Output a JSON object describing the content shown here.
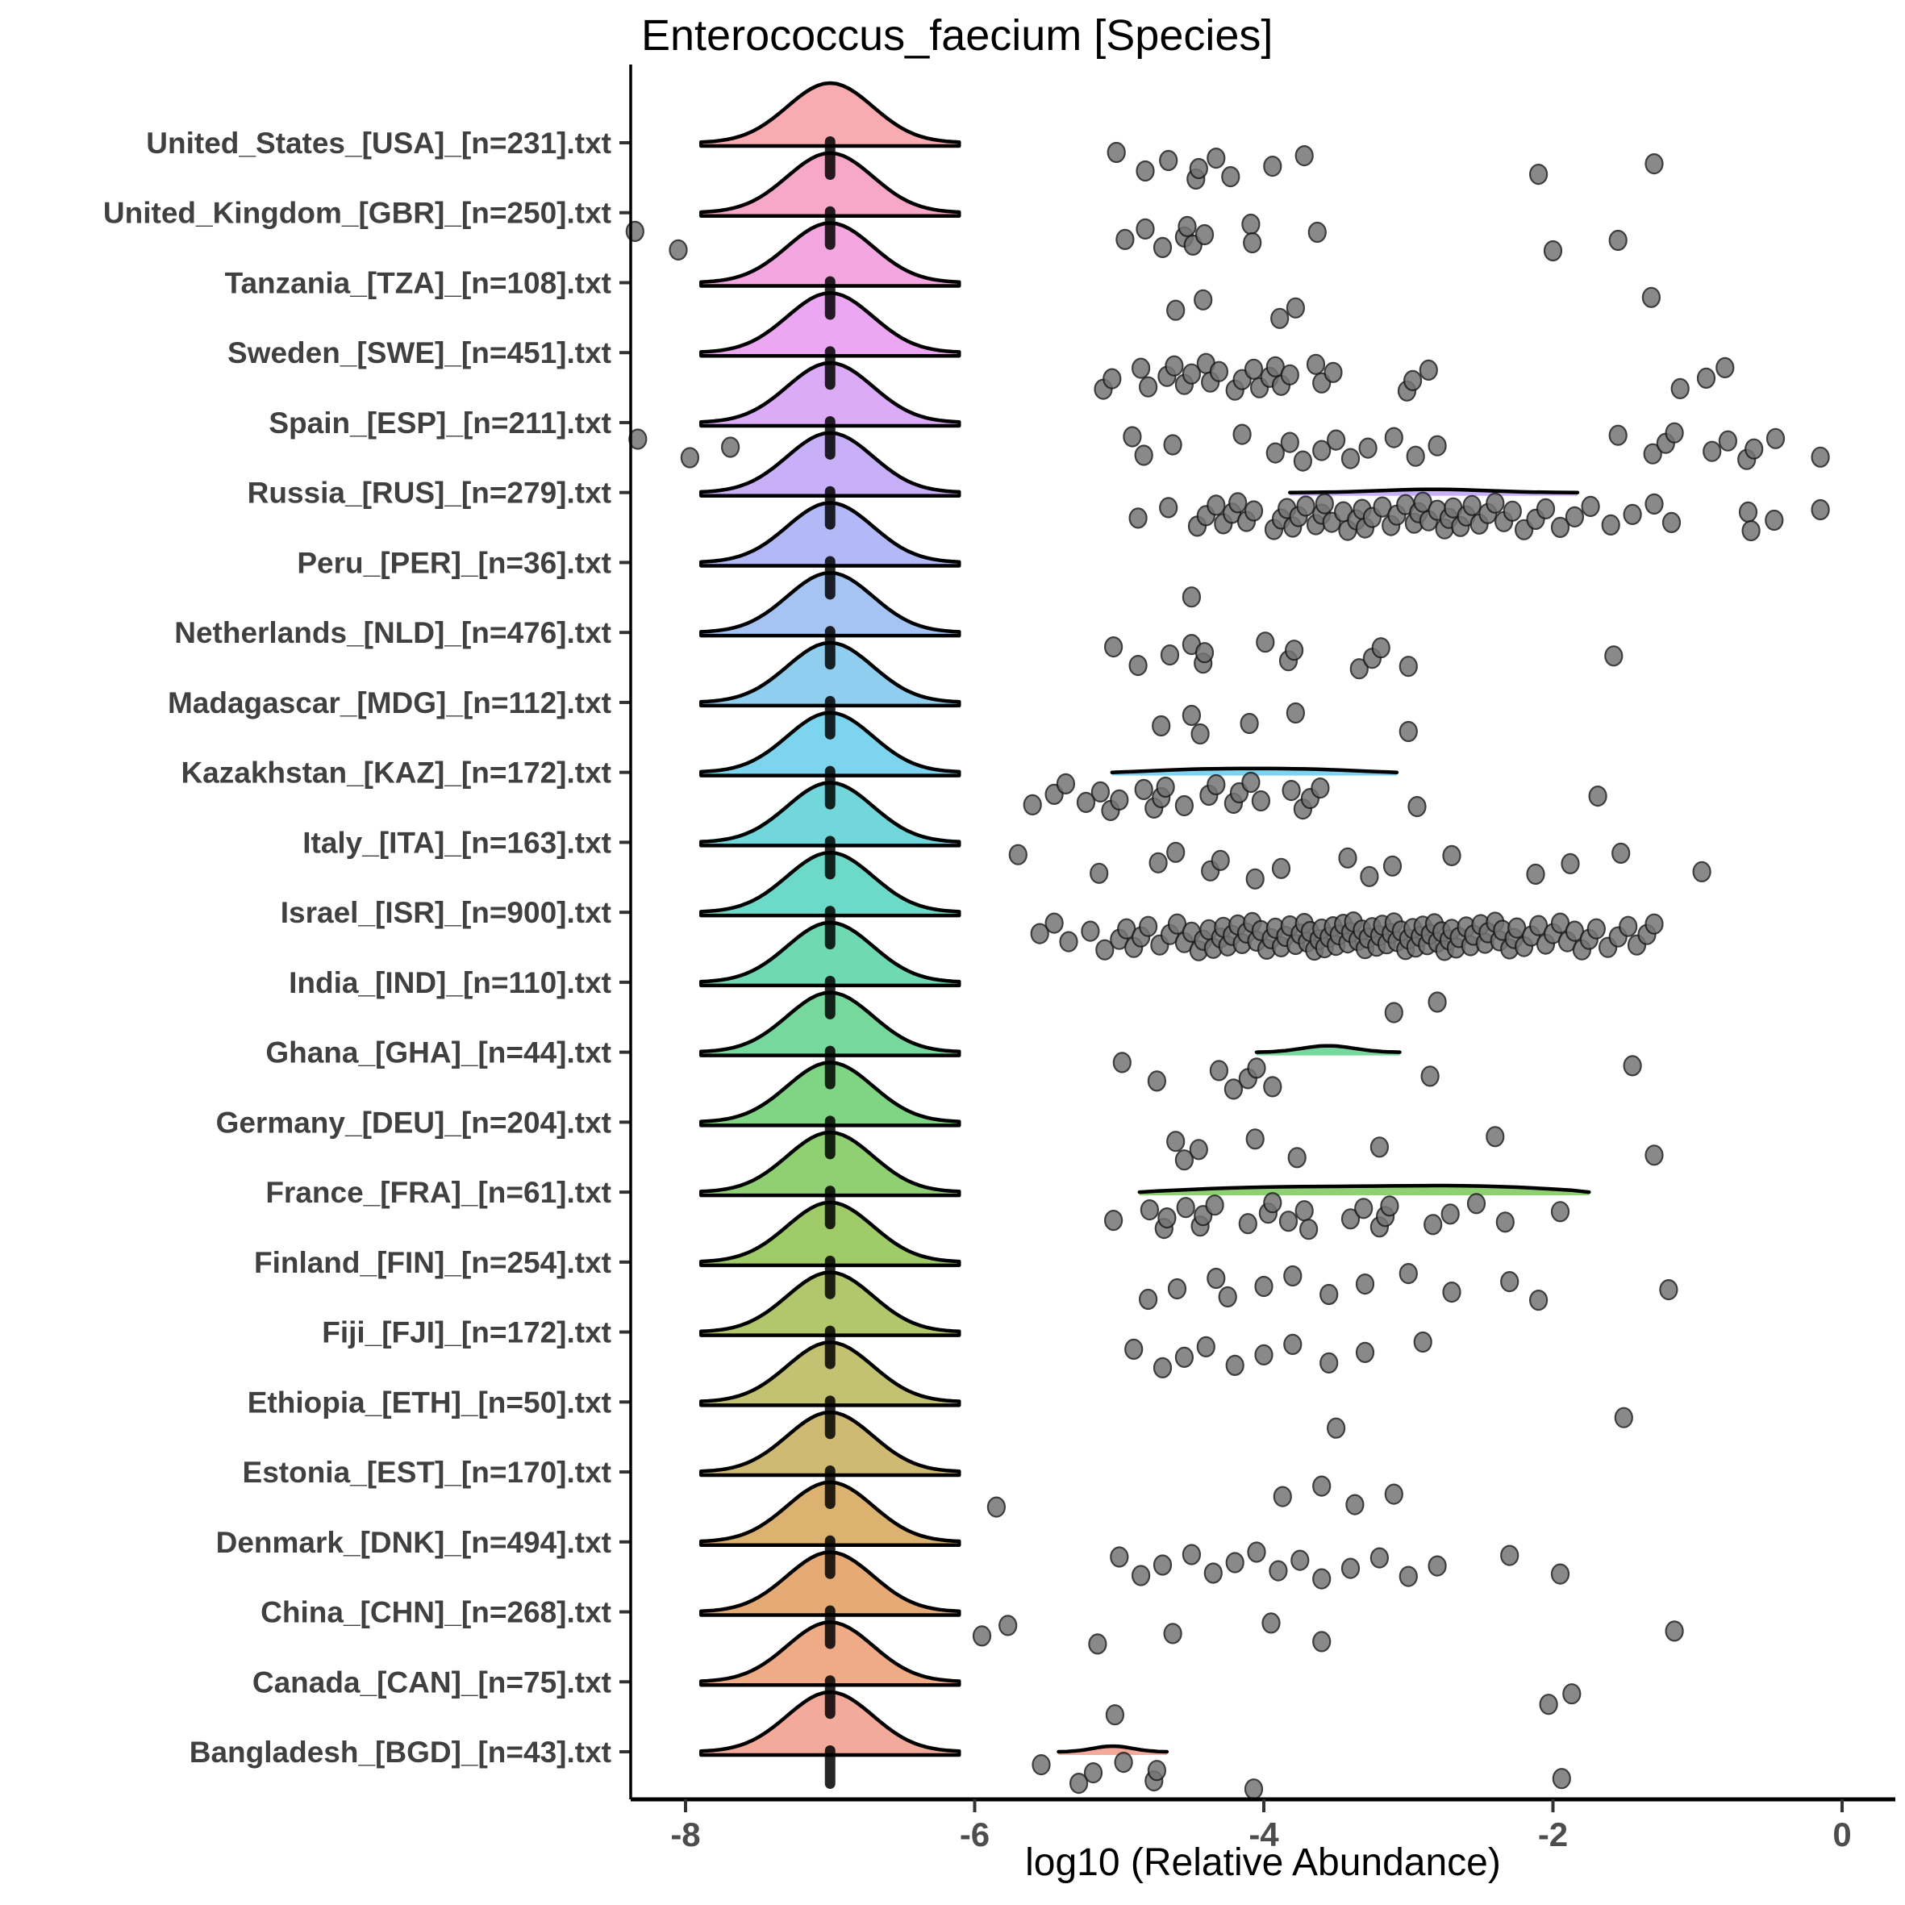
{
  "chart_data": {
    "type": "scatter",
    "variant": "ridgeline raincloud (density ridges at pseudo-zero + jittered sample points)",
    "title": "Enterococcus_faecium [Species]",
    "xlabel": "log10 (Relative Abundance)",
    "x_ticks": [
      -8,
      -6,
      -4,
      -2,
      0
    ],
    "xlim": [
      -8.4,
      0.37
    ],
    "zero_bar_x": -7,
    "grid": "off",
    "legend": "none",
    "colors": {
      "axis_text": "#4d4d4d",
      "label_text": "#404040",
      "point_fill": "#757575",
      "point_stroke": "#1c1c1c",
      "ridge_stroke": "#000000",
      "zero_bar": "#000000"
    },
    "rows": [
      {
        "label": "United_States_[USA]_[n=231].txt",
        "n": 231,
        "color": "#F8ABB1",
        "points": [
          -5.02,
          -4.82,
          -4.66,
          -4.47,
          -4.45,
          -4.33,
          -4.23,
          -3.94,
          -3.72,
          -2.1,
          -1.3
        ],
        "flat_ridge": null
      },
      {
        "label": "United_Kingdom_[GBR]_[n=250].txt",
        "n": 250,
        "color": "#F7A8C8",
        "points": [
          -8.35,
          -8.05,
          -4.96,
          -4.82,
          -4.7,
          -4.55,
          -4.53,
          -4.49,
          -4.41,
          -4.09,
          -4.08,
          -3.63,
          -2.0,
          -1.55
        ],
        "flat_ridge": null
      },
      {
        "label": "Tanzania_[TZA]_[n=108].txt",
        "n": 108,
        "color": "#F3A6DF",
        "points": [
          -4.61,
          -4.42,
          -3.89,
          -3.78,
          -1.32
        ],
        "flat_ridge": null
      },
      {
        "label": "Sweden_[SWE]_[n=451].txt",
        "n": 451,
        "color": "#ECA7F2",
        "points": [
          -5.11,
          -5.05,
          -4.85,
          -4.8,
          -4.67,
          -4.62,
          -4.55,
          -4.5,
          -4.4,
          -4.37,
          -4.31,
          -4.2,
          -4.15,
          -4.07,
          -4.03,
          -3.96,
          -3.92,
          -3.88,
          -3.82,
          -3.64,
          -3.6,
          -3.52,
          -3.01,
          -2.97,
          -2.86,
          -1.12,
          -0.94,
          -0.81
        ],
        "flat_ridge": null
      },
      {
        "label": "Spain_[ESP]_[n=211].txt",
        "n": 211,
        "color": "#DBABF7",
        "points": [
          -8.33,
          -7.97,
          -7.69,
          -4.91,
          -4.83,
          -4.63,
          -4.15,
          -3.92,
          -3.82,
          -3.73,
          -3.6,
          -3.5,
          -3.4,
          -3.28,
          -3.1,
          -2.95,
          -2.8,
          -1.55,
          -1.31,
          -1.22,
          -1.16,
          -0.9,
          -0.79,
          -0.66,
          -0.61,
          -0.46,
          -0.15
        ],
        "flat_ridge": null
      },
      {
        "label": "Russia_[RUS]_[n=279].txt",
        "n": 279,
        "color": "#C7B0F7",
        "points": [
          -4.87,
          -4.66,
          -4.46,
          -4.4,
          -4.33,
          -4.28,
          -4.22,
          -4.18,
          -4.12,
          -4.07,
          -3.93,
          -3.88,
          -3.84,
          -3.8,
          -3.76,
          -3.71,
          -3.64,
          -3.6,
          -3.58,
          -3.53,
          -3.45,
          -3.42,
          -3.36,
          -3.32,
          -3.3,
          -3.25,
          -3.18,
          -3.12,
          -3.08,
          -3.02,
          -2.96,
          -2.93,
          -2.9,
          -2.86,
          -2.8,
          -2.75,
          -2.72,
          -2.69,
          -2.64,
          -2.6,
          -2.56,
          -2.51,
          -2.45,
          -2.4,
          -2.34,
          -2.28,
          -2.2,
          -2.12,
          -2.05,
          -1.95,
          -1.85,
          -1.74,
          -1.6,
          -1.45,
          -1.3,
          -1.18,
          -0.65,
          -0.63,
          -0.47,
          -0.15
        ],
        "flat_ridge": {
          "x1": -3.82,
          "x2": -1.83,
          "humps": [
            [
              0.5,
              4
            ]
          ]
        }
      },
      {
        "label": "Peru_[PER]_[n=36].txt",
        "n": 36,
        "color": "#B3B9F7",
        "points": [
          -4.5
        ],
        "flat_ridge": null
      },
      {
        "label": "Netherlands_[NLD]_[n=476].txt",
        "n": 476,
        "color": "#A5C4F3",
        "points": [
          -5.04,
          -4.87,
          -4.65,
          -4.5,
          -4.42,
          -4.41,
          -3.99,
          -3.83,
          -3.79,
          -3.34,
          -3.25,
          -3.19,
          -3.0,
          -1.58
        ],
        "flat_ridge": null
      },
      {
        "label": "Madagascar_[MDG]_[n=112].txt",
        "n": 112,
        "color": "#8FCEEF",
        "points": [
          -4.71,
          -4.5,
          -4.44,
          -4.1,
          -3.78,
          -3.0
        ],
        "flat_ridge": null
      },
      {
        "label": "Kazakhstan_[KAZ]_[n=172].txt",
        "n": 172,
        "color": "#7DD4EE",
        "points": [
          -5.6,
          -5.45,
          -5.37,
          -5.23,
          -5.13,
          -5.06,
          -5.0,
          -4.83,
          -4.76,
          -4.71,
          -4.68,
          -4.55,
          -4.38,
          -4.33,
          -4.21,
          -4.17,
          -4.09,
          -4.02,
          -3.81,
          -3.73,
          -3.68,
          -3.61,
          -2.94,
          -1.69
        ],
        "flat_ridge": {
          "x1": -5.05,
          "x2": -3.08,
          "humps": [
            [
              0.3,
              4
            ],
            [
              0.7,
              4
            ]
          ]
        }
      },
      {
        "label": "Italy_[ITA]_[n=163].txt",
        "n": 163,
        "color": "#71D7DB",
        "points": [
          -5.7,
          -5.14,
          -4.73,
          -4.61,
          -4.37,
          -4.3,
          -4.06,
          -3.88,
          -3.42,
          -3.27,
          -3.11,
          -2.7,
          -2.12,
          -1.88,
          -1.53,
          -0.97
        ],
        "flat_ridge": null
      },
      {
        "label": "Israel_[ISR]_[n=900].txt",
        "n": 900,
        "color": "#6CD9C9",
        "points": [
          -5.55,
          -5.45,
          -5.35,
          -5.2,
          -5.1,
          -5.0,
          -4.95,
          -4.9,
          -4.85,
          -4.8,
          -4.72,
          -4.65,
          -4.6,
          -4.55,
          -4.5,
          -4.45,
          -4.42,
          -4.38,
          -4.35,
          -4.3,
          -4.28,
          -4.25,
          -4.22,
          -4.18,
          -4.15,
          -4.12,
          -4.08,
          -4.05,
          -4.02,
          -3.98,
          -3.95,
          -3.92,
          -3.88,
          -3.85,
          -3.82,
          -3.78,
          -3.75,
          -3.72,
          -3.7,
          -3.68,
          -3.65,
          -3.62,
          -3.6,
          -3.58,
          -3.55,
          -3.52,
          -3.5,
          -3.48,
          -3.45,
          -3.42,
          -3.4,
          -3.38,
          -3.35,
          -3.32,
          -3.3,
          -3.28,
          -3.25,
          -3.22,
          -3.2,
          -3.18,
          -3.15,
          -3.12,
          -3.1,
          -3.08,
          -3.05,
          -3.02,
          -3.0,
          -2.97,
          -2.95,
          -2.92,
          -2.9,
          -2.87,
          -2.85,
          -2.82,
          -2.8,
          -2.77,
          -2.75,
          -2.72,
          -2.7,
          -2.67,
          -2.65,
          -2.6,
          -2.57,
          -2.55,
          -2.5,
          -2.47,
          -2.45,
          -2.4,
          -2.37,
          -2.35,
          -2.3,
          -2.27,
          -2.25,
          -2.2,
          -2.15,
          -2.1,
          -2.05,
          -2.0,
          -1.95,
          -1.9,
          -1.85,
          -1.8,
          -1.75,
          -1.7,
          -1.62,
          -1.55,
          -1.48,
          -1.42,
          -1.35,
          -1.3
        ],
        "flat_ridge": null
      },
      {
        "label": "India_[IND]_[n=110].txt",
        "n": 110,
        "color": "#6FD9B4",
        "points": [
          -3.1,
          -2.8
        ],
        "flat_ridge": null
      },
      {
        "label": "Ghana_[GHA]_[n=44].txt",
        "n": 44,
        "color": "#77D89E",
        "points": [
          -4.98,
          -4.74,
          -4.31,
          -4.21,
          -4.11,
          -4.05,
          -3.94,
          -2.85,
          -1.45
        ],
        "flat_ridge": {
          "x1": -4.05,
          "x2": -3.06,
          "humps": [
            [
              0.5,
              8
            ]
          ]
        }
      },
      {
        "label": "Germany_[DEU]_[n=204].txt",
        "n": 204,
        "color": "#7FD584",
        "points": [
          -4.61,
          -4.55,
          -4.45,
          -4.06,
          -3.77,
          -3.2,
          -2.4,
          -1.3
        ],
        "flat_ridge": null
      },
      {
        "label": "France_[FRA]_[n=61].txt",
        "n": 61,
        "color": "#8FD172",
        "points": [
          -5.04,
          -4.79,
          -4.69,
          -4.67,
          -4.54,
          -4.44,
          -4.42,
          -4.34,
          -4.11,
          -3.97,
          -3.94,
          -3.83,
          -3.72,
          -3.69,
          -3.4,
          -3.31,
          -3.2,
          -3.16,
          -3.13,
          -2.83,
          -2.71,
          -2.53,
          -2.33,
          -1.95
        ],
        "flat_ridge": {
          "x1": -4.86,
          "x2": -1.75,
          "humps": [
            [
              0.22,
              6
            ],
            [
              0.58,
              4
            ],
            [
              0.85,
              7
            ]
          ]
        }
      },
      {
        "label": "Finland_[FIN]_[n=254].txt",
        "n": 254,
        "color": "#A0CB69",
        "points": [
          -4.8,
          -4.6,
          -4.33,
          -4.25,
          -4.0,
          -3.8,
          -3.55,
          -3.3,
          -3.0,
          -2.7,
          -2.3,
          -2.1,
          -1.2
        ],
        "flat_ridge": null
      },
      {
        "label": "Fiji_[FJI]_[n=172].txt",
        "n": 172,
        "color": "#B2C76B",
        "points": [
          -4.9,
          -4.7,
          -4.55,
          -4.4,
          -4.2,
          -4.0,
          -3.8,
          -3.55,
          -3.3,
          -2.9
        ],
        "flat_ridge": null
      },
      {
        "label": "Ethiopia_[ETH]_[n=50].txt",
        "n": 50,
        "color": "#C2C272",
        "points": [
          -3.5,
          -1.51
        ],
        "flat_ridge": null
      },
      {
        "label": "Estonia_[EST]_[n=170].txt",
        "n": 170,
        "color": "#CFBA74",
        "points": [
          -5.85,
          -3.87,
          -3.6,
          -3.37,
          -3.1
        ],
        "flat_ridge": null
      },
      {
        "label": "Denmark_[DNK]_[n=494].txt",
        "n": 494,
        "color": "#DCB271",
        "points": [
          -5.0,
          -4.85,
          -4.7,
          -4.5,
          -4.35,
          -4.2,
          -4.05,
          -3.9,
          -3.75,
          -3.6,
          -3.4,
          -3.2,
          -3.0,
          -2.8,
          -2.3,
          -1.95
        ],
        "flat_ridge": null
      },
      {
        "label": "China_[CHN]_[n=268].txt",
        "n": 268,
        "color": "#E6AB74",
        "points": [
          -5.95,
          -5.77,
          -5.15,
          -4.63,
          -3.95,
          -3.6,
          -1.16
        ],
        "flat_ridge": null
      },
      {
        "label": "Canada_[CAN]_[n=75].txt",
        "n": 75,
        "color": "#EFAA86",
        "points": [
          -5.03,
          -2.03,
          -1.87
        ],
        "flat_ridge": null
      },
      {
        "label": "Bangladesh_[BGD]_[n=43].txt",
        "n": 43,
        "color": "#F4AA9B",
        "points": [
          -5.54,
          -5.28,
          -5.18,
          -4.97,
          -4.76,
          -4.74,
          -4.07,
          -1.94
        ],
        "flat_ridge": {
          "x1": -5.42,
          "x2": -4.67,
          "humps": [
            [
              0.5,
              7
            ]
          ]
        }
      }
    ]
  }
}
